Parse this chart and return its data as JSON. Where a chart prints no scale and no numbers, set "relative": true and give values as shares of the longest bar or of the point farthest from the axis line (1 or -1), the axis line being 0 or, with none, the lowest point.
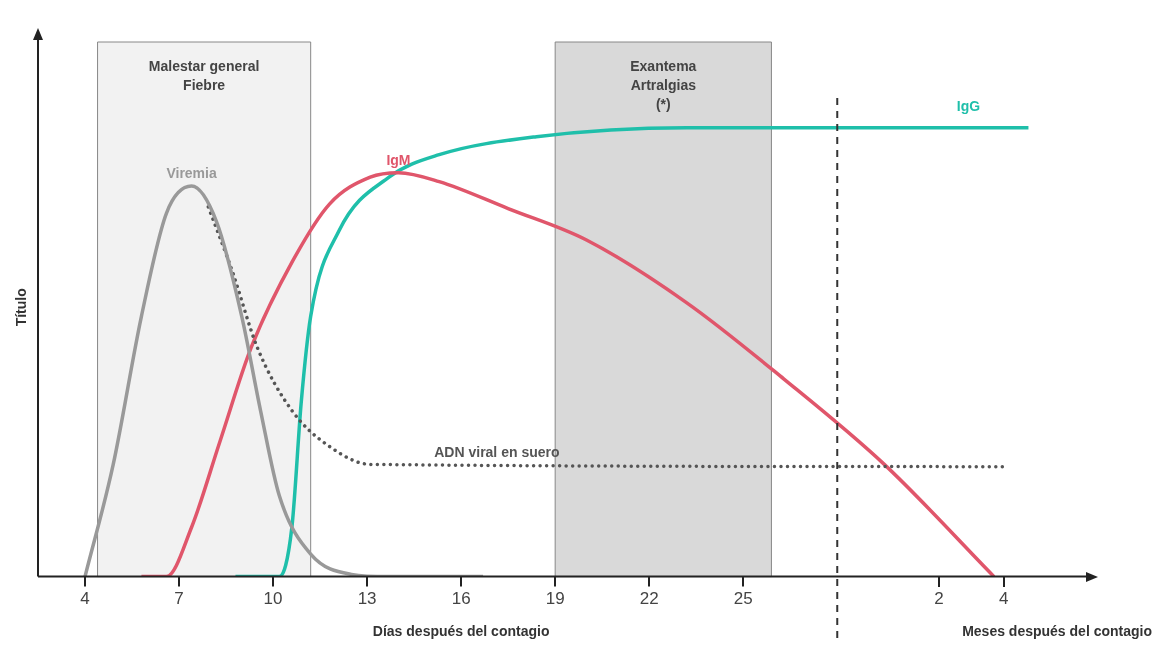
{
  "chart_data": {
    "type": "line",
    "relative": true,
    "ylabel": "Título",
    "xlabel": "Días después del contagio",
    "xlim": [
      2.5,
      36
    ],
    "xticks": [
      4,
      7,
      10,
      13,
      16,
      19,
      22,
      25
    ],
    "x2lim": [
      -25.8,
      6.6
    ],
    "x2ticks": [
      2,
      4
    ],
    "x2label": "Meses después del contagio",
    "tick_labels": "x",
    "grid": false,
    "marker": "none",
    "series": [
      {
        "name": "Viremia",
        "color": "#999999",
        "line_style": "solid",
        "x": [
          4,
          4.9,
          5.8,
          6.6,
          7.4,
          8.2,
          9.0,
          9.6,
          10.2,
          11.2,
          12.5,
          13.7,
          16.7
        ],
        "values": [
          0,
          0.25,
          0.58,
          0.81,
          0.87,
          0.79,
          0.58,
          0.37,
          0.18,
          0.05,
          0.005,
          0,
          0
        ]
      },
      {
        "name": "ADN viral en suero",
        "color": "#555555",
        "line_style": "dotted",
        "x": [
          7.9,
          8.7,
          9.5,
          10.6,
          11.8,
          13.1,
          33.3
        ],
        "values": [
          0.83,
          0.68,
          0.51,
          0.37,
          0.29,
          0.25,
          0.245
        ]
      },
      {
        "name": "IgM",
        "color": "#e0566b",
        "line_style": "solid",
        "x": [
          5.8,
          6.6,
          7.4,
          8.3,
          9.3,
          10.6,
          11.8,
          13.1,
          14.0,
          15.3,
          17.5,
          20.0,
          23.2,
          26.3,
          29.5,
          33.0
        ],
        "values": [
          0,
          0,
          0.11,
          0.3,
          0.51,
          0.7,
          0.83,
          0.89,
          0.9,
          0.88,
          0.82,
          0.75,
          0.61,
          0.44,
          0.25,
          0
        ]
      },
      {
        "name": "IgG",
        "color": "#1fbfaa",
        "line_style": "solid",
        "x": [
          8.8,
          9.6,
          10.2,
          10.6,
          10.9,
          11.2,
          12.1,
          13.7,
          15.3,
          18.4,
          23.2,
          34.1
        ],
        "values": [
          0,
          0,
          0,
          0.11,
          0.39,
          0.58,
          0.77,
          0.89,
          0.94,
          0.98,
          1.0,
          1.0
        ]
      }
    ],
    "bands": [
      {
        "axis": "x",
        "from": 4.4,
        "to": 11.2,
        "label": "Malestar general\nFiebre",
        "color": "#f2f2f2"
      },
      {
        "axis": "x",
        "from": 19.0,
        "to": 25.9,
        "label": "Exantema\nArtralgias\n(*)",
        "color": "#d9d9d9"
      }
    ],
    "ref_lines": [
      {
        "axis": "x",
        "value": 28,
        "line_style": "dashed",
        "color": "#333333"
      }
    ],
    "legend": false
  }
}
